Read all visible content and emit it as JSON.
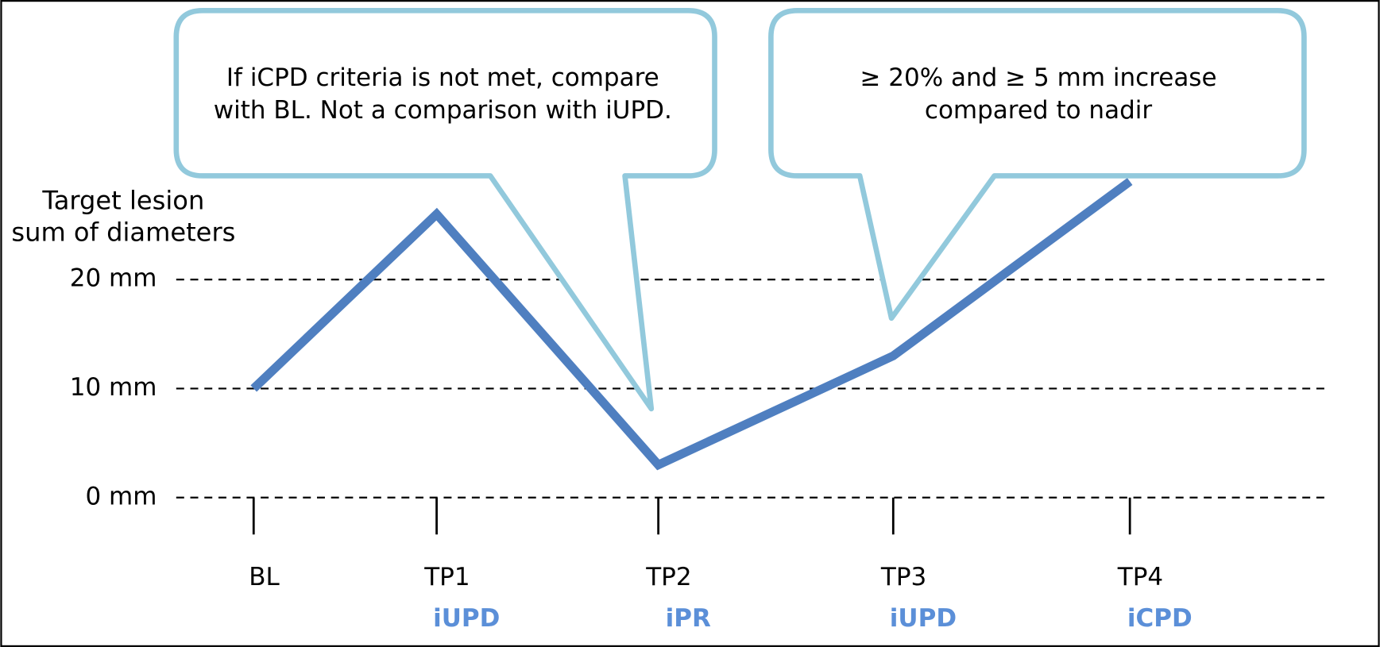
{
  "chart_data": {
    "type": "line",
    "y_label": [
      "Target lesion",
      "sum of diameters"
    ],
    "categories": [
      "BL",
      "TP1",
      "TP2",
      "TP3",
      "TP4"
    ],
    "status_labels": [
      null,
      "iUPD",
      "iPR",
      "iUPD",
      "iCPD"
    ],
    "status_color": "#5b8fd8",
    "series": [
      {
        "color": "#4f7fc0",
        "values": [
          10,
          26,
          3,
          13,
          29
        ]
      }
    ],
    "ylim": [
      0,
      30
    ],
    "yticks": [
      {
        "value": 0,
        "label": "0 mm"
      },
      {
        "value": 10,
        "label": "10 mm"
      },
      {
        "value": 20,
        "label": "20 mm"
      }
    ],
    "grid": true,
    "annotations": [
      {
        "text": [
          "If iCPD criteria is not met, compare",
          "with BL. Not a comparison with iUPD."
        ]
      },
      {
        "text": [
          "≥ 20% and ≥ 5 mm increase",
          "compared to nadir"
        ]
      }
    ],
    "annotation_color": "#92c9dc"
  }
}
